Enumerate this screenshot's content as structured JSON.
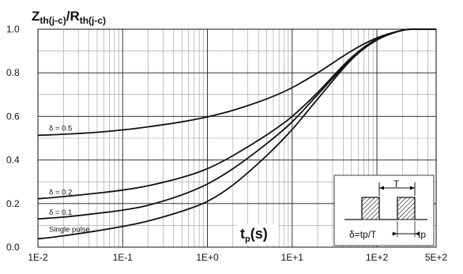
{
  "chart_data": {
    "type": "line",
    "title": {
      "main": "Z",
      "main_sub": "th(j-c)",
      "slash": "/R",
      "den_sub": "th(j-c)"
    },
    "xlabel": {
      "main": "t",
      "sub": "p",
      "unit": "(s)"
    },
    "x_scale": "log",
    "xlim": [
      0.01,
      500
    ],
    "ylim": [
      0.0,
      1.0
    ],
    "grid": true,
    "xtick_values": [
      0.01,
      0.1,
      1,
      10,
      100,
      500
    ],
    "xtick_labels": [
      "1E-2",
      "1E-1",
      "1E+0",
      "1E+1",
      "1E+2",
      "5E+2"
    ],
    "ytick_values": [
      0.0,
      0.2,
      0.4,
      0.6,
      0.8,
      1.0
    ],
    "ytick_labels": [
      "0.0",
      "0.2",
      "0.4",
      "0.6",
      "0.8",
      "1.0"
    ],
    "series": [
      {
        "name": "δ = 0.5",
        "x": [
          0.01,
          0.02,
          0.05,
          0.1,
          0.2,
          0.5,
          1,
          2,
          5,
          10,
          20,
          50,
          100,
          200,
          300,
          500
        ],
        "y": [
          0.513,
          0.518,
          0.527,
          0.538,
          0.552,
          0.575,
          0.598,
          0.628,
          0.68,
          0.732,
          0.8,
          0.9,
          0.96,
          0.995,
          1.0,
          1.0
        ]
      },
      {
        "name": "δ = 0.2",
        "x": [
          0.01,
          0.02,
          0.05,
          0.1,
          0.2,
          0.5,
          1,
          2,
          5,
          10,
          20,
          50,
          100,
          200,
          300,
          500
        ],
        "y": [
          0.222,
          0.232,
          0.248,
          0.262,
          0.282,
          0.32,
          0.36,
          0.42,
          0.515,
          0.6,
          0.71,
          0.87,
          0.955,
          0.995,
          1.0,
          1.0
        ]
      },
      {
        "name": "δ = 0.1",
        "x": [
          0.01,
          0.02,
          0.05,
          0.1,
          0.2,
          0.5,
          1,
          2,
          5,
          10,
          20,
          50,
          100,
          200,
          300,
          500
        ],
        "y": [
          0.13,
          0.138,
          0.155,
          0.17,
          0.192,
          0.24,
          0.29,
          0.36,
          0.475,
          0.575,
          0.7,
          0.865,
          0.955,
          0.995,
          1.0,
          1.0
        ]
      },
      {
        "name": "Single pulse",
        "x": [
          0.01,
          0.02,
          0.05,
          0.1,
          0.2,
          0.5,
          1,
          2,
          5,
          10,
          20,
          50,
          100,
          200,
          300,
          500
        ],
        "y": [
          0.038,
          0.052,
          0.075,
          0.095,
          0.12,
          0.165,
          0.21,
          0.285,
          0.42,
          0.54,
          0.68,
          0.86,
          0.95,
          0.995,
          1.0,
          1.0
        ]
      }
    ],
    "inset": {
      "period_label": "T",
      "formula": "δ=tp/T",
      "pulse_label": "tp"
    }
  }
}
